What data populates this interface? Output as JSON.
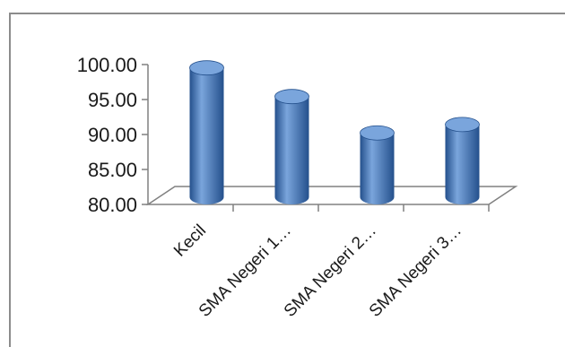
{
  "chart_data": {
    "type": "bar",
    "style": "3d-cylinder",
    "categories": [
      "Kecil",
      "SMA Negeri 1…",
      "SMA Negeri 2…",
      "SMA Negeri 3…"
    ],
    "values": [
      98.5,
      94.4,
      89.2,
      90.4
    ],
    "ylim": [
      80,
      100
    ],
    "yticks": [
      "80.00",
      "85.00",
      "90.00",
      "95.00",
      "100.00"
    ],
    "title": "",
    "xlabel": "",
    "ylabel": "",
    "grid": false,
    "legend": "none",
    "colors": {
      "bar": "#4a7ebf",
      "bar_dark": "#24508c",
      "bar_light": "#7aa5dc",
      "axis": "#808080"
    }
  }
}
